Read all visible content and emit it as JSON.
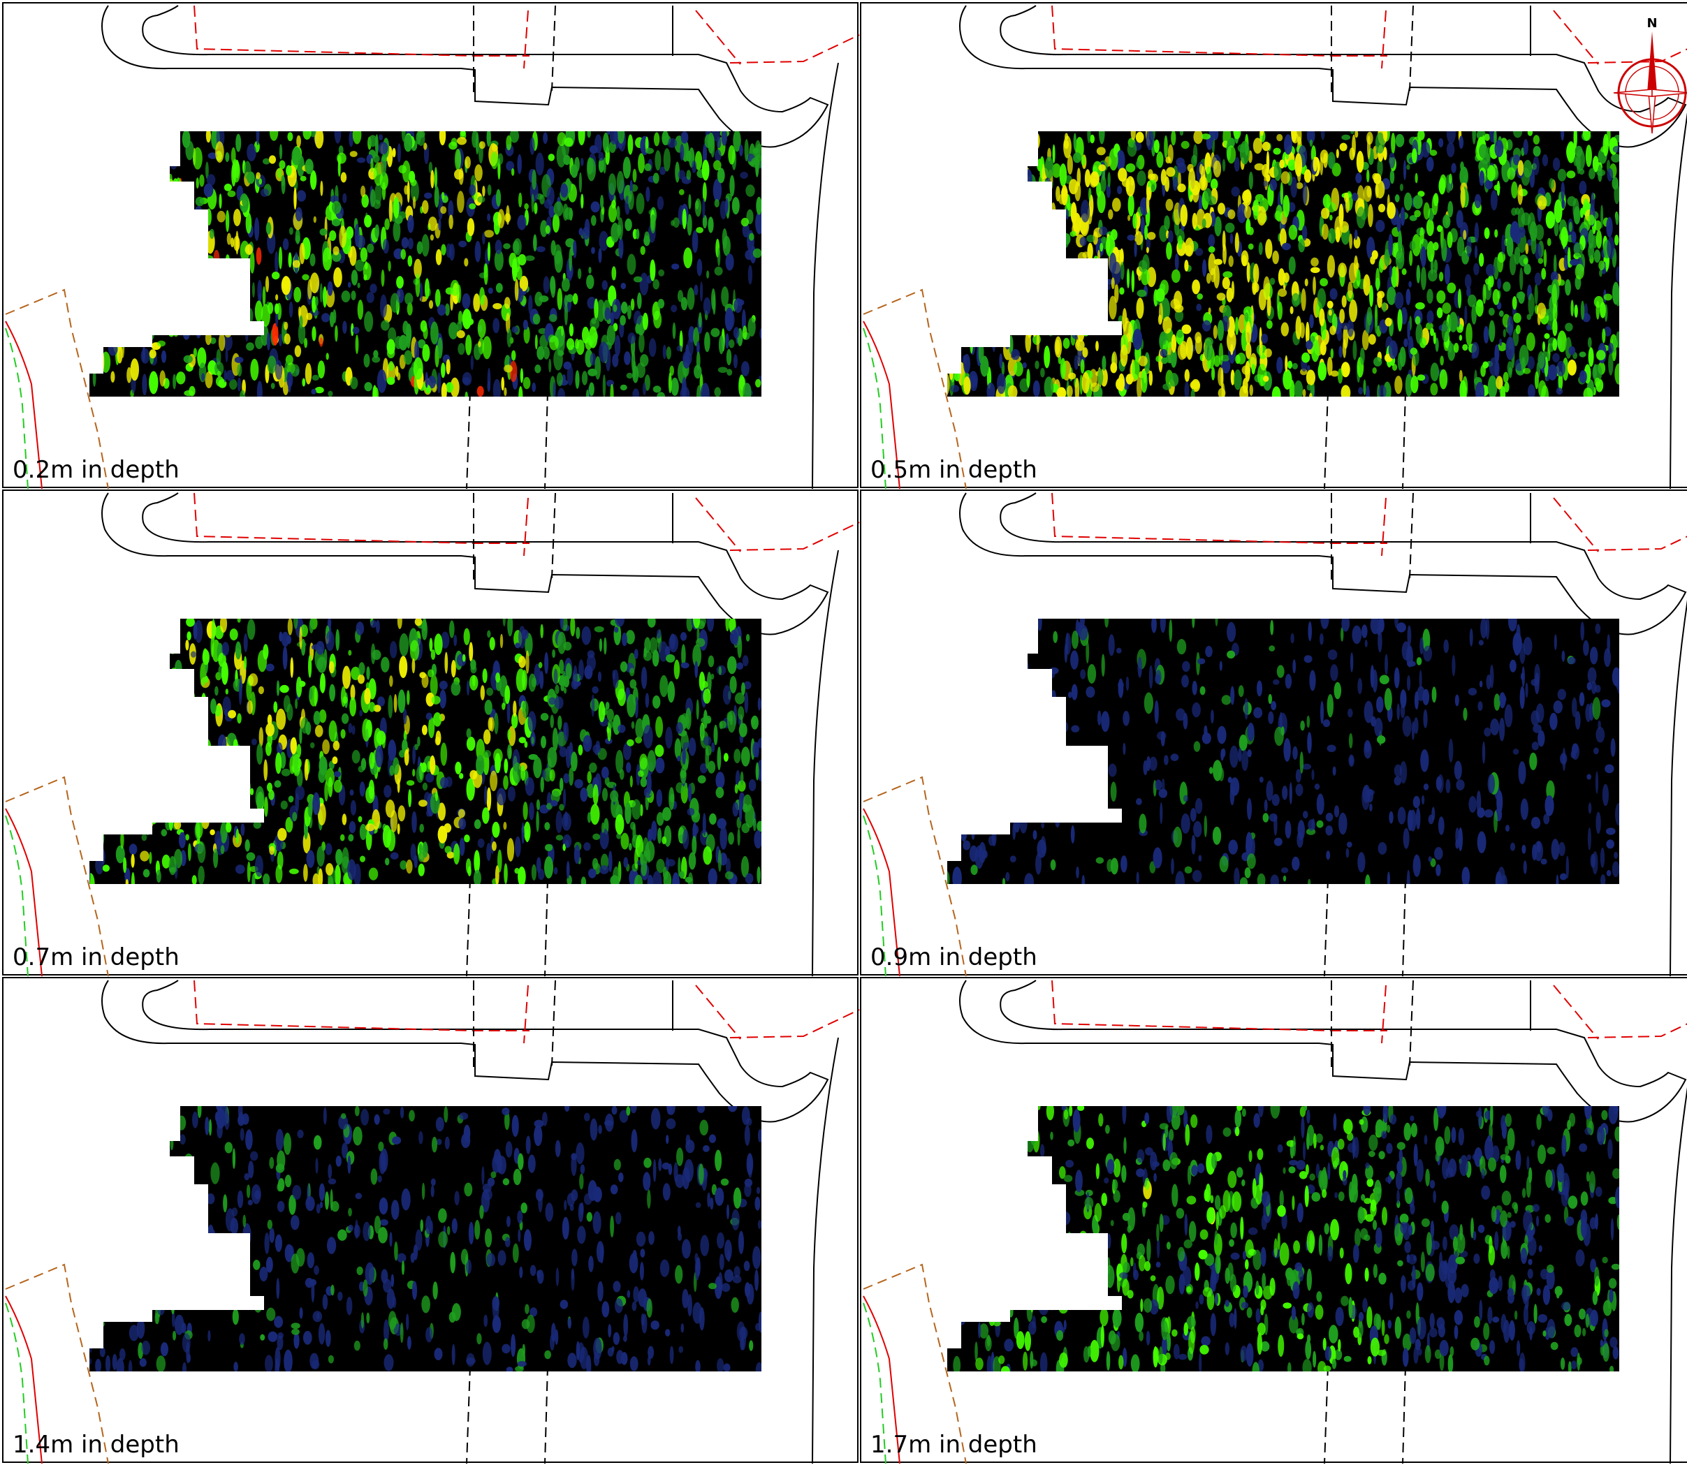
{
  "figure": {
    "panels": [
      {
        "label": "0.2m in depth",
        "depth_m": 0.2,
        "intensity": 0.55,
        "hot_level": 0.7
      },
      {
        "label": "0.5m in depth",
        "depth_m": 0.5,
        "intensity": 0.75,
        "hot_level": 0.0
      },
      {
        "label": "0.7m in depth",
        "depth_m": 0.7,
        "intensity": 0.5,
        "hot_level": 0.75
      },
      {
        "label": "0.9m in depth",
        "depth_m": 0.9,
        "intensity": 0.12,
        "hot_level": 0.0
      },
      {
        "label": "1.4m in depth",
        "depth_m": 1.4,
        "intensity": 0.15,
        "hot_level": 0.0
      },
      {
        "label": "1.7m in depth",
        "depth_m": 1.7,
        "intensity": 0.35,
        "hot_level": 0.6
      }
    ],
    "compass": {
      "north_label": "N",
      "color": "#cc0000"
    },
    "colors": {
      "background": "#000000",
      "low": "#1a2a7a",
      "mid": "#1fa01f",
      "high_green": "#44ff00",
      "yellow": "#f0f000",
      "hot": "#ff2a00",
      "boundary": "#000000",
      "red_dashed": "#e00000",
      "green_dashed": "#22cc22",
      "brown_dashed": "#b5651d",
      "red_solid": "#e00000"
    }
  }
}
